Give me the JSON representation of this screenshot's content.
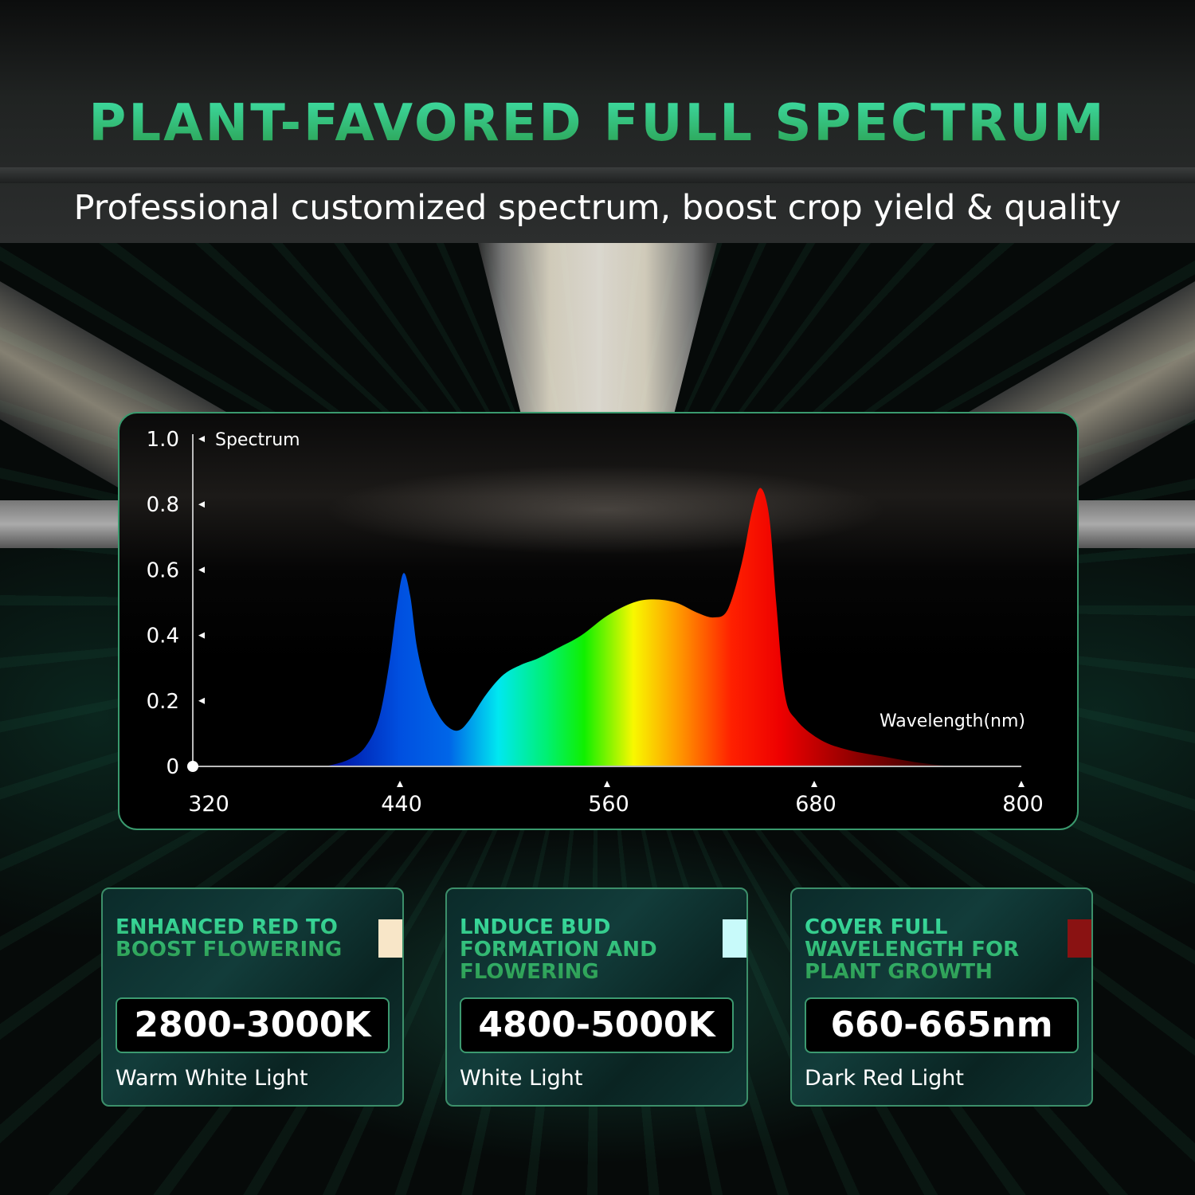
{
  "header": {
    "title": "PLANT-FAVORED FULL SPECTRUM",
    "subtitle": "Professional customized spectrum, boost crop yield & quality"
  },
  "chart_data": {
    "type": "area",
    "ylabel": "Spectrum",
    "xlabel": "Wavelength(nm)",
    "xlim": [
      320,
      800
    ],
    "ylim": [
      0,
      1.0
    ],
    "x_ticks": [
      "320",
      "440",
      "560",
      "680",
      "800"
    ],
    "y_ticks": [
      "0",
      "0.2",
      "0.4",
      "0.6",
      "0.8",
      "1.0"
    ],
    "grid": false,
    "fill": "rainbow gradient by wavelength",
    "points": [
      [
        397,
        0.0
      ],
      [
        410,
        0.02
      ],
      [
        420,
        0.06
      ],
      [
        428,
        0.15
      ],
      [
        434,
        0.32
      ],
      [
        438,
        0.48
      ],
      [
        442,
        0.59
      ],
      [
        446,
        0.52
      ],
      [
        450,
        0.36
      ],
      [
        456,
        0.23
      ],
      [
        462,
        0.16
      ],
      [
        468,
        0.12
      ],
      [
        474,
        0.11
      ],
      [
        480,
        0.14
      ],
      [
        490,
        0.22
      ],
      [
        500,
        0.28
      ],
      [
        510,
        0.31
      ],
      [
        520,
        0.33
      ],
      [
        531,
        0.36
      ],
      [
        545,
        0.4
      ],
      [
        560,
        0.46
      ],
      [
        575,
        0.5
      ],
      [
        587,
        0.51
      ],
      [
        600,
        0.5
      ],
      [
        612,
        0.47
      ],
      [
        622,
        0.455
      ],
      [
        630,
        0.48
      ],
      [
        638,
        0.62
      ],
      [
        644,
        0.78
      ],
      [
        649,
        0.85
      ],
      [
        654,
        0.76
      ],
      [
        658,
        0.5
      ],
      [
        663,
        0.22
      ],
      [
        670,
        0.14
      ],
      [
        684,
        0.08
      ],
      [
        700,
        0.05
      ],
      [
        720,
        0.03
      ],
      [
        740,
        0.012
      ],
      [
        760,
        0.0
      ]
    ]
  },
  "cards": [
    {
      "heading": "ENHANCED RED TO BOOST FLOWERING",
      "value": "2800-3000K",
      "label": "Warm White Light",
      "swatch": "#f8e6c8"
    },
    {
      "heading": "LNDUCE BUD FORMATION AND FLOWERING",
      "value": "4800-5000K",
      "label": "White Light",
      "swatch": "#c8fafa"
    },
    {
      "heading": "COVER FULL WAVELENGTH FOR PLANT GROWTH",
      "value": "660-665nm",
      "label": "Dark Red Light",
      "swatch": "#8a1212"
    }
  ],
  "colors": {
    "accent": "#3fd99a",
    "border": "#3a9a6e"
  }
}
